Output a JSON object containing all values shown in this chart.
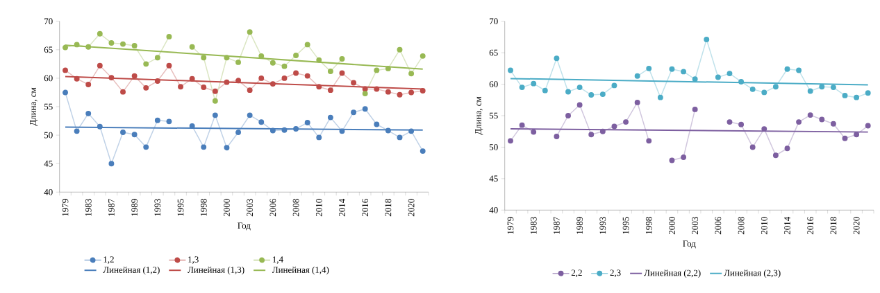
{
  "chart_data": [
    {
      "type": "line",
      "xlabel": "Год",
      "ylabel": "Длина, см",
      "ylim": [
        40,
        70
      ],
      "yticks": [
        40,
        45,
        50,
        55,
        60,
        65,
        70
      ],
      "legend": "bottom",
      "categories": [
        "1979",
        null,
        "1983",
        null,
        "1987",
        null,
        "1989",
        null,
        "1993",
        null,
        "1995",
        null,
        "1998",
        null,
        "2000",
        null,
        "2003",
        null,
        "2006",
        null,
        "2008",
        null,
        "2010",
        null,
        "2014",
        null,
        "2016",
        null,
        "2018",
        null,
        "2020",
        null
      ],
      "series": [
        {
          "name": "1,2",
          "color": "#4a7ebb",
          "marker": "circle",
          "values": [
            57.5,
            50.7,
            53.8,
            51.5,
            45.0,
            50.5,
            50.1,
            47.9,
            52.6,
            52.4,
            null,
            51.6,
            47.9,
            53.5,
            47.8,
            50.5,
            53.5,
            52.3,
            50.8,
            50.9,
            51.1,
            52.2,
            49.6,
            53.1,
            50.7,
            54.0,
            54.6,
            51.9,
            50.8,
            49.6,
            50.7,
            47.2
          ]
        },
        {
          "name": "1,3",
          "color": "#be4b48",
          "marker": "circle",
          "values": [
            61.4,
            59.9,
            58.9,
            62.2,
            60.1,
            57.6,
            60.4,
            58.3,
            59.5,
            62.2,
            58.5,
            59.9,
            58.4,
            57.7,
            59.3,
            59.6,
            57.9,
            60.0,
            59.0,
            60.0,
            60.9,
            60.4,
            58.5,
            57.9,
            60.9,
            59.2,
            58.1,
            58.1,
            57.6,
            57.1,
            57.5,
            57.8
          ]
        },
        {
          "name": "1,4",
          "color": "#98b954",
          "marker": "circle",
          "values": [
            65.4,
            65.9,
            65.5,
            67.8,
            66.2,
            66.0,
            65.7,
            62.5,
            63.6,
            67.3,
            null,
            65.5,
            63.6,
            56.0,
            63.6,
            62.8,
            68.1,
            63.9,
            62.7,
            62.1,
            64.0,
            65.9,
            63.2,
            61.2,
            63.4,
            null,
            57.3,
            61.4,
            61.7,
            65.0,
            60.8,
            63.9
          ]
        },
        {
          "name": "Линейная (1,2)",
          "color": "#4a7ebb",
          "marker": "none",
          "values": [
            51.4,
            null,
            null,
            null,
            null,
            null,
            null,
            null,
            null,
            null,
            null,
            null,
            null,
            null,
            null,
            null,
            null,
            null,
            null,
            null,
            null,
            null,
            null,
            null,
            null,
            null,
            null,
            null,
            null,
            null,
            null,
            50.9
          ]
        },
        {
          "name": "Линейная (1,3)",
          "color": "#be4b48",
          "marker": "none",
          "values": [
            60.3,
            null,
            null,
            null,
            null,
            null,
            null,
            null,
            null,
            null,
            null,
            null,
            null,
            null,
            null,
            null,
            null,
            null,
            null,
            null,
            null,
            null,
            null,
            null,
            null,
            null,
            null,
            null,
            null,
            null,
            null,
            58.1
          ]
        },
        {
          "name": "Линейная (1,4)",
          "color": "#98b954",
          "marker": "none",
          "values": [
            65.8,
            null,
            null,
            null,
            null,
            null,
            null,
            null,
            null,
            null,
            null,
            null,
            null,
            null,
            null,
            null,
            null,
            null,
            null,
            null,
            null,
            null,
            null,
            null,
            null,
            null,
            null,
            null,
            null,
            null,
            null,
            61.6
          ]
        }
      ]
    },
    {
      "type": "line",
      "xlabel": "Год",
      "ylabel": "Длина, см",
      "ylim": [
        40,
        70
      ],
      "yticks": [
        40,
        45,
        50,
        55,
        60,
        65,
        70
      ],
      "legend": "bottom",
      "categories": [
        "1979",
        null,
        "1983",
        null,
        "1987",
        null,
        "1989",
        null,
        "1993",
        null,
        "1995",
        null,
        "1998",
        null,
        "2000",
        null,
        "2003",
        null,
        "2006",
        null,
        "2008",
        null,
        "2010",
        null,
        "2014",
        null,
        "2016",
        null,
        "2018",
        null,
        "2020",
        null
      ],
      "series": [
        {
          "name": "2,2",
          "color": "#7d5fa0",
          "marker": "circle",
          "values": [
            51.0,
            53.5,
            52.4,
            null,
            51.7,
            55.0,
            56.7,
            52.0,
            52.5,
            53.3,
            54.0,
            57.1,
            51.0,
            null,
            47.9,
            48.4,
            56.0,
            null,
            null,
            54.0,
            53.6,
            50.0,
            52.9,
            48.7,
            49.8,
            54.0,
            55.1,
            54.4,
            53.7,
            51.4,
            52.0,
            53.4
          ]
        },
        {
          "name": "2,3",
          "color": "#4bacc6",
          "marker": "circle",
          "values": [
            62.2,
            59.5,
            60.1,
            59.0,
            64.1,
            58.8,
            59.5,
            58.3,
            58.4,
            59.8,
            null,
            61.3,
            62.5,
            57.9,
            62.4,
            62.0,
            60.8,
            67.1,
            61.1,
            61.7,
            60.4,
            59.2,
            58.7,
            59.6,
            62.4,
            62.2,
            58.9,
            59.6,
            59.5,
            58.2,
            57.9,
            58.6
          ]
        },
        {
          "name": "Линейная (2,2)",
          "color": "#7d5fa0",
          "marker": "none",
          "values": [
            52.9,
            null,
            null,
            null,
            null,
            null,
            null,
            null,
            null,
            null,
            null,
            null,
            null,
            null,
            null,
            null,
            null,
            null,
            null,
            null,
            null,
            null,
            null,
            null,
            null,
            null,
            null,
            null,
            null,
            null,
            null,
            52.4
          ]
        },
        {
          "name": "Линейная (2,3)",
          "color": "#4bacc6",
          "marker": "none",
          "values": [
            60.9,
            null,
            null,
            null,
            null,
            null,
            null,
            null,
            null,
            null,
            null,
            null,
            null,
            null,
            null,
            null,
            null,
            null,
            null,
            null,
            null,
            null,
            null,
            null,
            null,
            null,
            null,
            null,
            null,
            null,
            null,
            59.9
          ]
        }
      ]
    }
  ]
}
